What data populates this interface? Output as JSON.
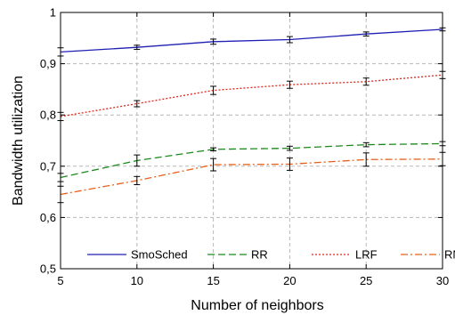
{
  "chart_data": {
    "type": "line",
    "xlabel": "Number of neighbors",
    "ylabel": "Bandwidth utilization",
    "x": [
      5,
      10,
      15,
      20,
      25,
      30
    ],
    "x_ticks": [
      "5",
      "10",
      "15",
      "20",
      "25",
      "30"
    ],
    "y_ticks": [
      "0,5",
      "0,6",
      "0,7",
      "0,8",
      "0,9",
      "1"
    ],
    "xlim": [
      5,
      30
    ],
    "ylim": [
      0.5,
      1.0
    ],
    "grid": true,
    "legend_position": "bottom",
    "series": [
      {
        "name": "SmoSched",
        "color": "#1f1fb4",
        "dash": "solid",
        "values": [
          0.923,
          0.932,
          0.943,
          0.947,
          0.958,
          0.967
        ],
        "errors": [
          0.008,
          0.004,
          0.005,
          0.006,
          0.004,
          0.003
        ]
      },
      {
        "name": "RR",
        "color": "#1a8a1a",
        "dash": "long-dash",
        "values": [
          0.678,
          0.711,
          0.733,
          0.735,
          0.742,
          0.744
        ],
        "errors": [
          0.008,
          0.011,
          0.003,
          0.004,
          0.004,
          0.004
        ]
      },
      {
        "name": "LRF",
        "color": "#e0281e",
        "dash": "dotted",
        "values": [
          0.797,
          0.822,
          0.848,
          0.859,
          0.865,
          0.878
        ],
        "errors": [
          0.008,
          0.006,
          0.008,
          0.007,
          0.007,
          0.007
        ]
      },
      {
        "name": "RND",
        "color": "#e8601c",
        "dash": "dash-dot",
        "values": [
          0.645,
          0.672,
          0.703,
          0.704,
          0.713,
          0.714
        ],
        "errors": [
          0.016,
          0.008,
          0.012,
          0.012,
          0.013,
          0.013
        ]
      }
    ]
  }
}
